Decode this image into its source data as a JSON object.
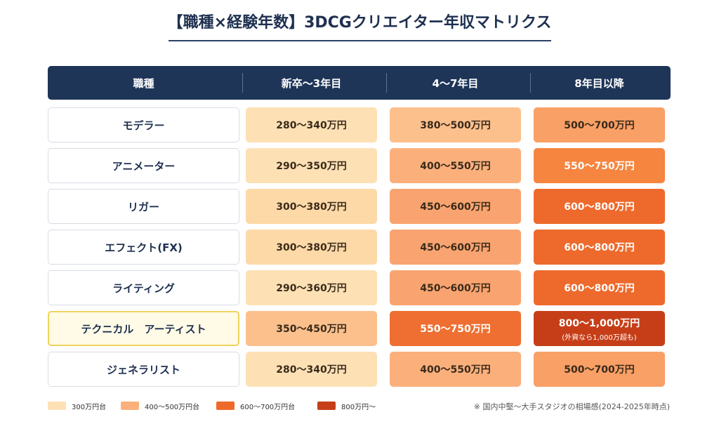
{
  "header": {
    "title": "【職種×経験年数】3DCGクリエイター年収マトリクス"
  },
  "table": {
    "columns": [
      "職種",
      "新卒〜3年目",
      "4〜7年目",
      "8年目以降"
    ],
    "rows": [
      {
        "name": "モデラー",
        "cells": [
          {
            "text": "280〜340万円",
            "color": "#fde1b5"
          },
          {
            "text": "380〜500万円",
            "color": "#fcc08d"
          },
          {
            "text": "500〜700万円",
            "color": "#f9a066"
          }
        ]
      },
      {
        "name": "アニメーター",
        "cells": [
          {
            "text": "290〜350万円",
            "color": "#fde1b5"
          },
          {
            "text": "400〜550万円",
            "color": "#fbb07c"
          },
          {
            "text": "550〜750万円",
            "color": "#f6853f"
          }
        ]
      },
      {
        "name": "リガー",
        "cells": [
          {
            "text": "300〜380万円",
            "color": "#fdd9a8"
          },
          {
            "text": "450〜600万円",
            "color": "#f9a470"
          },
          {
            "text": "600〜800万円",
            "color": "#ed6a2c"
          }
        ]
      },
      {
        "name": "エフェクト(FX)",
        "cells": [
          {
            "text": "300〜380万円",
            "color": "#fdd9a8"
          },
          {
            "text": "450〜600万円",
            "color": "#f9a470"
          },
          {
            "text": "600〜800万円",
            "color": "#ed6a2c"
          }
        ]
      },
      {
        "name": "ライティング",
        "cells": [
          {
            "text": "290〜360万円",
            "color": "#fde1b5"
          },
          {
            "text": "450〜600万円",
            "color": "#f9a470"
          },
          {
            "text": "600〜800万円",
            "color": "#ed6a2c"
          }
        ]
      },
      {
        "name": "テクニカル　アーティスト",
        "highlight": true,
        "cells": [
          {
            "text": "350〜450万円",
            "color": "#fbc08c"
          },
          {
            "text": "550〜750万円",
            "color": "#ee6f31"
          },
          {
            "text": "800〜1,000万円",
            "note": "(外資なら1,000万超も)",
            "color": "#c63e18"
          }
        ]
      },
      {
        "name": "ジェネラリスト",
        "cells": [
          {
            "text": "280〜340万円",
            "color": "#fde1b5"
          },
          {
            "text": "400〜550万円",
            "color": "#fbb07c"
          },
          {
            "text": "500〜700万円",
            "color": "#f9a066"
          }
        ]
      }
    ]
  },
  "legend": [
    {
      "label": "300万円台",
      "color": "#fde1b5"
    },
    {
      "label": "400〜500万円台",
      "color": "#fbb07c"
    },
    {
      "label": "600〜700万円台",
      "color": "#ed6a2c"
    },
    {
      "label": "800万円〜",
      "color": "#c63e18"
    }
  ],
  "footer": {
    "note": "※ 国内中堅〜大手スタジオの相場感(2024-2025年時点)"
  }
}
